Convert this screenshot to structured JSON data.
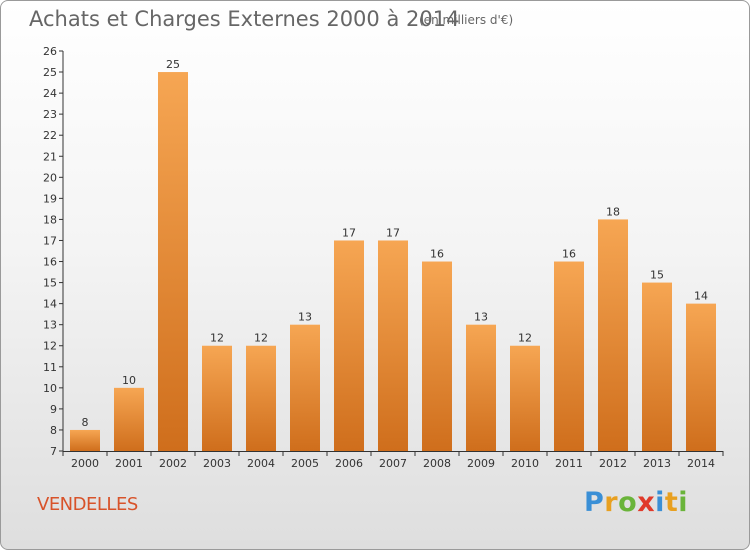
{
  "title": "Achats et Charges Externes 2000 à 2014",
  "subtitle": "(en milliers d'€)",
  "place": "VENDELLES",
  "logo": {
    "text": "Proxiti",
    "letters": [
      {
        "ch": "P",
        "color": "#3a8fd6"
      },
      {
        "ch": "r",
        "color": "#e8a020"
      },
      {
        "ch": "o",
        "color": "#6ab43a"
      },
      {
        "ch": "x",
        "color": "#e03a2a"
      },
      {
        "ch": "i",
        "color": "#3a8fd6"
      },
      {
        "ch": "t",
        "color": "#e8a020"
      },
      {
        "ch": "i",
        "color": "#6ab43a"
      }
    ]
  },
  "colors": {
    "bar_top": "#f6a653",
    "bar_bottom": "#cf6e1c",
    "axis": "#333333",
    "grid": "#d8d8d8",
    "text": "#333333",
    "place": "#d8532a"
  },
  "chart_data": {
    "type": "bar",
    "categories": [
      "2000",
      "2001",
      "2002",
      "2003",
      "2004",
      "2005",
      "2006",
      "2007",
      "2008",
      "2009",
      "2010",
      "2011",
      "2012",
      "2013",
      "2014"
    ],
    "values": [
      8,
      10,
      25,
      12,
      12,
      13,
      17,
      17,
      16,
      13,
      12,
      16,
      18,
      15,
      14
    ],
    "ylim": [
      7,
      26
    ],
    "yticks": [
      7,
      8,
      9,
      10,
      11,
      12,
      13,
      14,
      15,
      16,
      17,
      18,
      19,
      20,
      21,
      22,
      23,
      24,
      25,
      26
    ],
    "grid": false,
    "xlabel": "",
    "ylabel": ""
  }
}
